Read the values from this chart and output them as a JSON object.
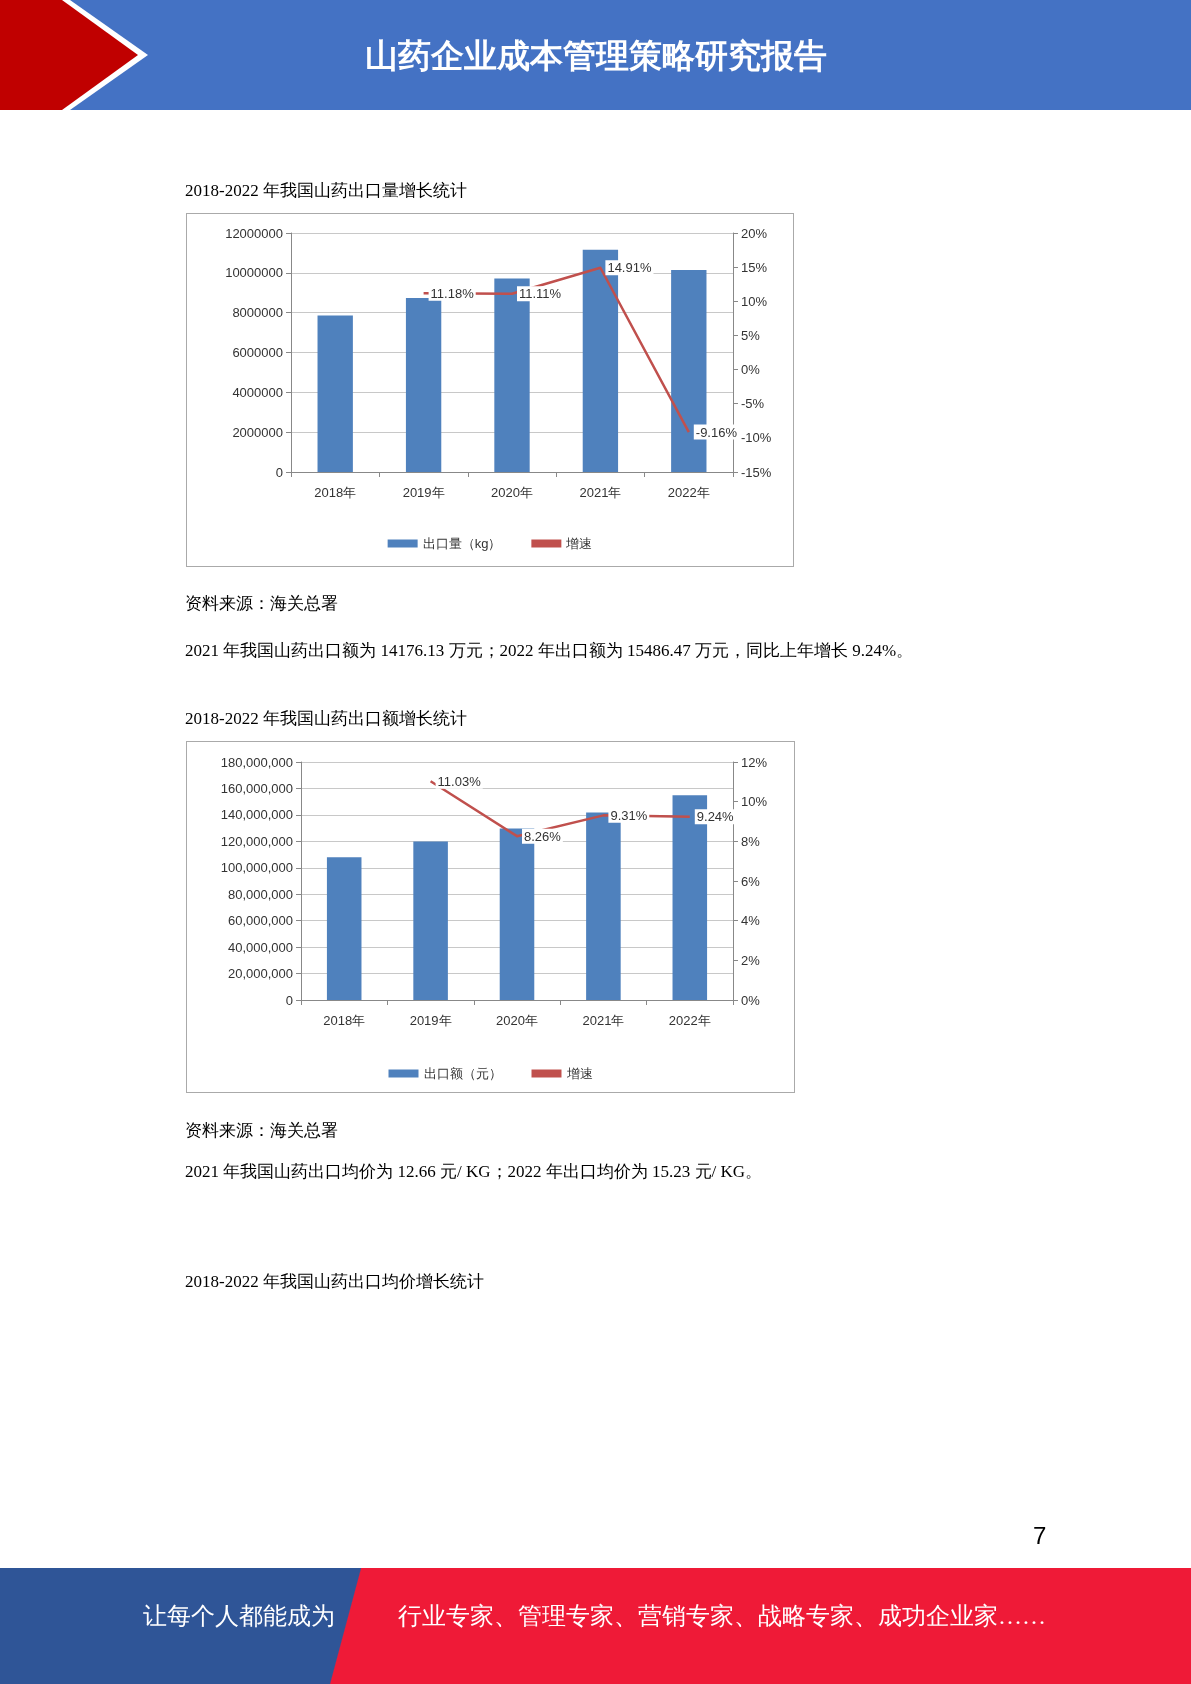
{
  "chart_data": [
    {
      "type": "bar",
      "title": "2018-2022 年我国山药出口量增长统计",
      "categories": [
        "2018年",
        "2019年",
        "2020年",
        "2021年",
        "2022年"
      ],
      "series": [
        {
          "name": "出口量（kg）",
          "type": "bar",
          "color": "#4f81bd",
          "values": [
            7860000,
            8740000,
            9710000,
            11160000,
            10140000
          ]
        },
        {
          "name": "增速",
          "type": "line",
          "axis": "y2",
          "color": "#c0504d",
          "values": [
            null,
            11.18,
            11.11,
            14.91,
            -9.16
          ],
          "value_labels": [
            null,
            "11.18%",
            "11.11%",
            "14.91%",
            "-9.16%"
          ]
        }
      ],
      "ylim": [
        0,
        12000000
      ],
      "yticks": [
        0,
        2000000,
        4000000,
        6000000,
        8000000,
        10000000,
        12000000
      ],
      "y2lim": [
        -15,
        20
      ],
      "y2ticks": [
        {
          "value": -15,
          "label": "-15%"
        },
        {
          "value": -10,
          "label": "-10%"
        },
        {
          "value": -5,
          "label": "-5%"
        },
        {
          "value": 0,
          "label": "0%"
        },
        {
          "value": 5,
          "label": "5%"
        },
        {
          "value": 10,
          "label": "10%"
        },
        {
          "value": 15,
          "label": "15%"
        },
        {
          "value": 20,
          "label": "20%"
        }
      ],
      "grid": "y",
      "legend": "bottom",
      "annotations": [
        "资料来源：海关总署",
        "2021 年我国山药出口额为 14176.13 万元；2022 年出口额为 15486.47 万元，同比上年增长 9.24%。"
      ]
    },
    {
      "type": "bar",
      "title": "2018-2022 年我国山药出口额增长统计",
      "categories": [
        "2018年",
        "2019年",
        "2020年",
        "2021年",
        "2022年"
      ],
      "series": [
        {
          "name": "出口额（元）",
          "type": "bar",
          "color": "#4f81bd",
          "values": [
            107900000,
            119800000,
            129700000,
            141800000,
            154900000
          ]
        },
        {
          "name": "增速",
          "type": "line",
          "axis": "y2",
          "color": "#c0504d",
          "values": [
            null,
            11.03,
            8.26,
            9.31,
            9.24
          ],
          "value_labels": [
            null,
            "11.03%",
            "8.26%",
            "9.31%",
            "9.24%"
          ]
        }
      ],
      "ylim": [
        0,
        180000000
      ],
      "yticks": [
        0,
        {
          "value": 20000000,
          "label": "20,000,000"
        },
        {
          "value": 40000000,
          "label": "40,000,000"
        },
        {
          "value": 60000000,
          "label": "60,000,000"
        },
        {
          "value": 80000000,
          "label": "80,000,000"
        },
        {
          "value": 100000000,
          "label": "100,000,000"
        },
        {
          "value": 120000000,
          "label": "120,000,000"
        },
        {
          "value": 140000000,
          "label": "140,000,000"
        },
        {
          "value": 160000000,
          "label": "160,000,000"
        },
        {
          "value": 180000000,
          "label": "180,000,000"
        }
      ],
      "y2lim": [
        0,
        12
      ],
      "y2ticks": [
        {
          "value": 0,
          "label": "0%"
        },
        {
          "value": 2,
          "label": "2%"
        },
        {
          "value": 4,
          "label": "4%"
        },
        {
          "value": 6,
          "label": "6%"
        },
        {
          "value": 8,
          "label": "8%"
        },
        {
          "value": 10,
          "label": "10%"
        },
        {
          "value": 12,
          "label": "12%"
        }
      ],
      "grid": "y",
      "legend": "bottom",
      "annotations": [
        "资料来源：海关总署",
        "2021 年我国山药出口均价为 12.66 元/ KG；2022 年出口均价为 15.23 元/ KG。",
        "2018-2022 年我国山药出口均价增长统计"
      ]
    },
    {
      "type": "other",
      "title": "山药企业成本管理策略研究报告",
      "annotations": [
        "让每个人都能成为",
        "行业专家、管理专家、营销专家、战略专家、成功企业家……",
        "7"
      ]
    }
  ]
}
